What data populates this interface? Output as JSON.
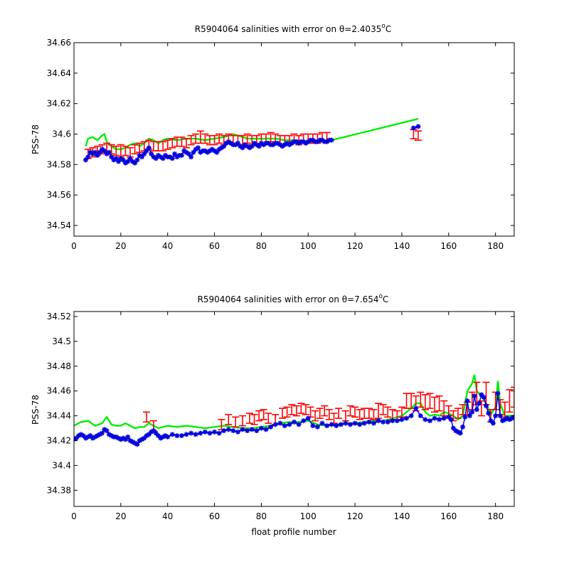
{
  "figure": {
    "colors": {
      "green": "#00ee00",
      "red": "#ff0000",
      "blue": "#0000dd",
      "axis": "#000000"
    }
  },
  "chart_data": [
    {
      "type": "line",
      "title": "R5904064 salinities with error on θ=2.4035",
      "title_superscript": "o",
      "title_unit": "C",
      "xlabel": "",
      "ylabel": "PSS-78",
      "xlim": [
        0,
        188
      ],
      "ylim": [
        34.533,
        34.66
      ],
      "xticks": [
        0,
        20,
        40,
        60,
        80,
        100,
        120,
        140,
        160,
        180
      ],
      "xtick_labels": [
        "0",
        "20",
        "40",
        "60",
        "80",
        "100",
        "120",
        "140",
        "160",
        "180"
      ],
      "yticks": [
        34.54,
        34.56,
        34.58,
        34.6,
        34.62,
        34.64,
        34.66
      ],
      "ytick_labels": [
        "34.54",
        "34.56",
        "34.58",
        "34.6",
        "34.62",
        "34.64",
        "34.66"
      ],
      "grid": false,
      "green_line": {
        "x": [
          5,
          6,
          8,
          10,
          12,
          13,
          14,
          16,
          18,
          20,
          22,
          24,
          26,
          28,
          30,
          32,
          34,
          36,
          38,
          40,
          44,
          48,
          52,
          56,
          60,
          64,
          66,
          68,
          70,
          74,
          78,
          82,
          86,
          90,
          94,
          98,
          102,
          106,
          110,
          147
        ],
        "y": [
          34.592,
          34.597,
          34.598,
          34.596,
          34.599,
          34.6,
          34.595,
          34.592,
          34.59,
          34.59,
          34.591,
          34.593,
          34.594,
          34.592,
          34.594,
          34.597,
          34.596,
          34.594,
          34.596,
          34.597,
          34.596,
          34.597,
          34.597,
          34.596,
          34.597,
          34.598,
          34.599,
          34.6,
          34.599,
          34.597,
          34.597,
          34.597,
          34.597,
          34.596,
          34.596,
          34.595,
          34.595,
          34.595,
          34.596,
          34.61
        ]
      },
      "red_error": {
        "x": [
          6,
          8,
          10,
          12,
          14,
          16,
          18,
          20,
          22,
          24,
          26,
          28,
          30,
          32,
          34,
          36,
          38,
          40,
          42,
          44,
          46,
          48,
          50,
          52,
          54,
          56,
          58,
          60,
          62,
          64,
          66,
          68,
          70,
          72,
          74,
          76,
          78,
          80,
          82,
          84,
          86,
          88,
          90,
          92,
          94,
          96,
          98,
          100,
          102,
          104,
          106,
          108,
          145,
          147
        ],
        "y": [
          34.587,
          34.588,
          34.589,
          34.59,
          34.591,
          34.59,
          34.589,
          34.589,
          34.589,
          34.588,
          34.59,
          34.591,
          34.592,
          34.593,
          34.592,
          34.592,
          34.592,
          34.593,
          34.594,
          34.595,
          34.595,
          34.594,
          34.596,
          34.597,
          34.598,
          34.597,
          34.596,
          34.596,
          34.597,
          34.596,
          34.597,
          34.596,
          34.596,
          34.596,
          34.597,
          34.596,
          34.596,
          34.597,
          34.597,
          34.598,
          34.597,
          34.596,
          34.596,
          34.596,
          34.597,
          34.596,
          34.597,
          34.597,
          34.597,
          34.597,
          34.598,
          34.598,
          34.6,
          34.599
        ],
        "err": [
          0.003,
          0.003,
          0.003,
          0.003,
          0.003,
          0.003,
          0.003,
          0.004,
          0.003,
          0.003,
          0.003,
          0.003,
          0.003,
          0.003,
          0.003,
          0.003,
          0.003,
          0.003,
          0.003,
          0.003,
          0.003,
          0.003,
          0.003,
          0.003,
          0.004,
          0.003,
          0.003,
          0.003,
          0.003,
          0.003,
          0.003,
          0.003,
          0.003,
          0.003,
          0.003,
          0.003,
          0.003,
          0.003,
          0.003,
          0.003,
          0.003,
          0.003,
          0.003,
          0.003,
          0.003,
          0.003,
          0.003,
          0.003,
          0.003,
          0.003,
          0.003,
          0.003,
          0.003,
          0.003
        ]
      },
      "blue_points": {
        "x": [
          5,
          6,
          7,
          8,
          9,
          10,
          11,
          12,
          13,
          14,
          15,
          16,
          17,
          18,
          19,
          20,
          21,
          22,
          23,
          24,
          25,
          26,
          27,
          28,
          29,
          30,
          31,
          32,
          33,
          34,
          35,
          36,
          37,
          38,
          39,
          40,
          41,
          42,
          43,
          44,
          45,
          46,
          47,
          48,
          49,
          50,
          51,
          52,
          53,
          54,
          55,
          56,
          57,
          58,
          59,
          60,
          61,
          62,
          63,
          64,
          65,
          66,
          67,
          68,
          69,
          70,
          71,
          72,
          73,
          74,
          75,
          76,
          77,
          78,
          79,
          80,
          81,
          82,
          83,
          84,
          85,
          86,
          87,
          88,
          89,
          90,
          91,
          92,
          93,
          94,
          95,
          96,
          97,
          98,
          99,
          100,
          101,
          102,
          103,
          104,
          105,
          106,
          107,
          108,
          109,
          110,
          145,
          147
        ],
        "y": [
          34.583,
          34.585,
          34.588,
          34.587,
          34.588,
          34.586,
          34.588,
          34.59,
          34.589,
          34.587,
          34.588,
          34.585,
          34.583,
          34.584,
          34.582,
          34.584,
          34.583,
          34.581,
          34.582,
          34.584,
          34.582,
          34.581,
          34.583,
          34.586,
          34.585,
          34.587,
          34.589,
          34.591,
          34.587,
          34.585,
          34.584,
          34.586,
          34.585,
          34.584,
          34.586,
          34.585,
          34.585,
          34.584,
          34.587,
          34.585,
          34.586,
          34.586,
          34.589,
          34.588,
          34.587,
          34.585,
          34.588,
          34.59,
          34.591,
          34.588,
          34.589,
          34.589,
          34.588,
          34.589,
          34.59,
          34.589,
          34.588,
          34.59,
          34.591,
          34.592,
          34.594,
          34.595,
          34.594,
          34.593,
          34.593,
          34.594,
          34.592,
          34.591,
          34.593,
          34.592,
          34.591,
          34.592,
          34.594,
          34.593,
          34.592,
          34.594,
          34.593,
          34.594,
          34.594,
          34.593,
          34.593,
          34.594,
          34.594,
          34.593,
          34.592,
          34.593,
          34.594,
          34.593,
          34.594,
          34.595,
          34.595,
          34.594,
          34.595,
          34.595,
          34.594,
          34.595,
          34.596,
          34.596,
          34.595,
          34.595,
          34.596,
          34.596,
          34.595,
          34.595,
          34.596,
          34.596,
          34.604,
          34.605
        ]
      }
    },
    {
      "type": "line",
      "title": "R5904064 salinities with error on θ=7.654",
      "title_superscript": "o",
      "title_unit": "C",
      "xlabel": "float profile number",
      "ylabel": "PSS-78",
      "xlim": [
        0,
        188
      ],
      "ylim": [
        34.367,
        34.524
      ],
      "xticks": [
        0,
        20,
        40,
        60,
        80,
        100,
        120,
        140,
        160,
        180
      ],
      "xtick_labels": [
        "0",
        "20",
        "40",
        "60",
        "80",
        "100",
        "120",
        "140",
        "160",
        "180"
      ],
      "yticks": [
        34.38,
        34.4,
        34.42,
        34.44,
        34.46,
        34.48,
        34.5,
        34.52
      ],
      "ytick_labels": [
        "34.38",
        "34.4",
        "34.42",
        "34.44",
        "34.46",
        "34.48",
        "34.5",
        "34.52"
      ],
      "grid": false,
      "green_line": {
        "x": [
          0,
          3,
          6,
          9,
          12,
          14,
          16,
          18,
          20,
          22,
          24,
          26,
          28,
          30,
          32,
          34,
          36,
          38,
          40,
          44,
          48,
          52,
          56,
          60,
          64,
          68,
          72,
          76,
          80,
          84,
          88,
          92,
          96,
          100,
          104,
          108,
          112,
          116,
          120,
          124,
          128,
          132,
          136,
          140,
          142,
          144,
          146,
          148,
          150,
          152,
          154,
          156,
          158,
          160,
          162,
          164,
          166,
          168,
          170,
          171,
          172,
          174,
          176,
          178,
          180,
          181,
          182,
          184,
          186,
          188
        ],
        "y": [
          34.432,
          34.435,
          34.436,
          34.432,
          34.434,
          34.439,
          34.433,
          34.432,
          34.432,
          34.434,
          34.432,
          34.43,
          34.431,
          34.431,
          34.434,
          34.432,
          34.43,
          34.431,
          34.432,
          34.431,
          34.432,
          34.431,
          34.43,
          34.431,
          34.432,
          34.431,
          34.43,
          34.43,
          34.431,
          34.432,
          34.434,
          34.435,
          34.435,
          34.436,
          34.433,
          34.432,
          34.433,
          34.434,
          34.434,
          34.435,
          34.436,
          34.436,
          34.438,
          34.44,
          34.443,
          34.446,
          34.45,
          34.45,
          34.443,
          34.44,
          34.441,
          34.44,
          34.443,
          34.442,
          34.44,
          34.437,
          34.44,
          34.46,
          34.466,
          34.473,
          34.46,
          34.456,
          34.45,
          34.441,
          34.447,
          34.468,
          34.45,
          34.44,
          34.44,
          34.44
        ]
      },
      "red_error": {
        "x": [
          31,
          34,
          63,
          66,
          69,
          72,
          75,
          77,
          79,
          81,
          83,
          86,
          89,
          91,
          93,
          95,
          97,
          99,
          101,
          103,
          105,
          107,
          109,
          111,
          113,
          116,
          118,
          120,
          122,
          124,
          126,
          128,
          130,
          132,
          134,
          136,
          138,
          140,
          142,
          144,
          146,
          148,
          150,
          152,
          154,
          156,
          158,
          160,
          162,
          164,
          166,
          168,
          170,
          172,
          174,
          176,
          178,
          180,
          182,
          184,
          186,
          188
        ],
        "y": [
          34.439,
          34.432,
          34.433,
          34.437,
          34.435,
          34.436,
          34.438,
          34.437,
          34.44,
          34.441,
          34.438,
          34.437,
          34.442,
          34.443,
          34.445,
          34.444,
          34.446,
          34.445,
          34.443,
          34.44,
          34.442,
          34.444,
          34.441,
          34.438,
          34.442,
          34.44,
          34.444,
          34.443,
          34.441,
          34.442,
          34.442,
          34.441,
          34.444,
          34.445,
          34.443,
          34.441,
          34.44,
          34.443,
          34.452,
          34.452,
          34.45,
          34.453,
          34.451,
          34.452,
          34.449,
          34.45,
          34.446,
          34.444,
          34.44,
          34.442,
          34.445,
          34.446,
          34.452,
          34.458,
          34.446,
          34.458,
          34.44,
          34.452,
          34.447,
          34.445,
          34.452,
          34.455
        ],
        "err": [
          0.004,
          0.004,
          0.004,
          0.004,
          0.004,
          0.004,
          0.004,
          0.004,
          0.004,
          0.004,
          0.004,
          0.004,
          0.004,
          0.004,
          0.004,
          0.004,
          0.004,
          0.004,
          0.004,
          0.004,
          0.004,
          0.004,
          0.004,
          0.004,
          0.004,
          0.004,
          0.004,
          0.004,
          0.004,
          0.004,
          0.004,
          0.004,
          0.006,
          0.004,
          0.004,
          0.004,
          0.004,
          0.004,
          0.006,
          0.006,
          0.006,
          0.006,
          0.006,
          0.006,
          0.006,
          0.006,
          0.006,
          0.004,
          0.004,
          0.004,
          0.004,
          0.005,
          0.007,
          0.009,
          0.006,
          0.009,
          0.005,
          0.007,
          0.006,
          0.006,
          0.009,
          0.008
        ]
      },
      "blue_points": {
        "x": [
          0,
          1,
          2,
          3,
          4,
          5,
          6,
          7,
          8,
          9,
          10,
          11,
          12,
          13,
          14,
          15,
          16,
          17,
          18,
          19,
          20,
          21,
          22,
          23,
          24,
          25,
          26,
          27,
          28,
          29,
          30,
          31,
          32,
          33,
          34,
          35,
          36,
          37,
          38,
          39,
          40,
          42,
          44,
          46,
          48,
          50,
          52,
          54,
          56,
          58,
          60,
          62,
          64,
          66,
          68,
          70,
          72,
          74,
          76,
          78,
          80,
          82,
          84,
          86,
          88,
          90,
          92,
          94,
          96,
          98,
          100,
          102,
          104,
          106,
          108,
          110,
          112,
          114,
          116,
          118,
          120,
          122,
          124,
          126,
          128,
          130,
          132,
          134,
          136,
          138,
          140,
          142,
          144,
          146,
          148,
          150,
          152,
          154,
          156,
          158,
          160,
          161,
          162,
          163,
          164,
          165,
          166,
          167,
          168,
          169,
          170,
          171,
          172,
          173,
          174,
          175,
          176,
          177,
          178,
          179,
          180,
          181,
          182,
          183,
          184,
          185,
          186,
          187,
          188
        ],
        "y": [
          34.421,
          34.422,
          34.424,
          34.425,
          34.424,
          34.422,
          34.423,
          34.424,
          34.422,
          34.423,
          34.424,
          34.425,
          34.426,
          34.429,
          34.428,
          34.425,
          34.424,
          34.423,
          34.423,
          34.422,
          34.421,
          34.422,
          34.421,
          34.423,
          34.42,
          34.419,
          34.418,
          34.417,
          34.42,
          34.421,
          34.422,
          34.424,
          34.425,
          34.427,
          34.428,
          34.426,
          34.424,
          34.422,
          34.423,
          34.424,
          34.423,
          34.425,
          34.424,
          34.424,
          34.425,
          34.426,
          34.425,
          34.426,
          34.427,
          34.426,
          34.427,
          34.426,
          34.428,
          34.429,
          34.428,
          34.427,
          34.429,
          34.428,
          34.429,
          34.428,
          34.43,
          34.429,
          34.431,
          34.433,
          34.434,
          34.432,
          34.433,
          34.435,
          34.433,
          34.436,
          34.438,
          34.432,
          34.431,
          34.434,
          34.432,
          34.433,
          34.432,
          34.433,
          34.434,
          34.433,
          34.434,
          34.433,
          34.434,
          34.435,
          34.434,
          34.436,
          34.435,
          34.435,
          34.436,
          34.436,
          34.437,
          34.438,
          34.44,
          34.446,
          34.44,
          34.437,
          34.436,
          34.438,
          34.437,
          34.438,
          34.439,
          34.437,
          34.43,
          34.428,
          34.427,
          34.426,
          34.431,
          34.439,
          34.452,
          34.44,
          34.443,
          34.456,
          34.445,
          34.45,
          34.457,
          34.455,
          34.448,
          34.442,
          34.436,
          34.434,
          34.44,
          34.458,
          34.44,
          34.436,
          34.437,
          34.438,
          34.437,
          34.438,
          34.439
        ]
      }
    }
  ]
}
